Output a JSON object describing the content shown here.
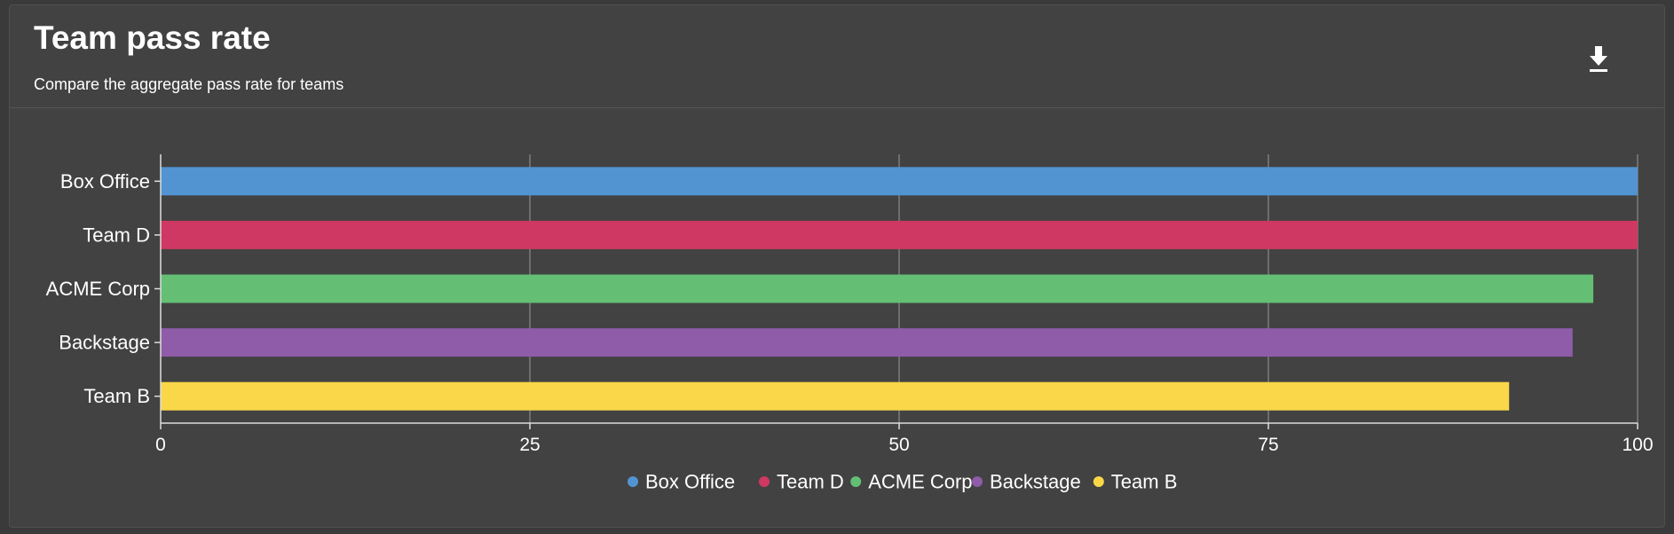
{
  "header": {
    "title": "Team pass rate",
    "subtitle": "Compare the aggregate pass rate for teams",
    "download_icon": "download-icon"
  },
  "chart_data": {
    "type": "bar",
    "orientation": "horizontal",
    "title": "",
    "xlabel": "",
    "ylabel": "",
    "categories": [
      "Box Office",
      "Team D",
      "ACME Corp",
      "Backstage",
      "Team B"
    ],
    "values": [
      100,
      100,
      97,
      95.6,
      91.3
    ],
    "colors": [
      "#5294d2",
      "#cf3862",
      "#64bf75",
      "#8e5ca8",
      "#fad748"
    ],
    "xlim": [
      0,
      100
    ],
    "xticks": [
      0,
      25,
      50,
      75,
      100
    ],
    "grid": true,
    "legend": {
      "position": "bottom-center",
      "entries": [
        "Box Office",
        "Team D",
        "ACME Corp",
        "Backstage",
        "Team B"
      ]
    }
  }
}
